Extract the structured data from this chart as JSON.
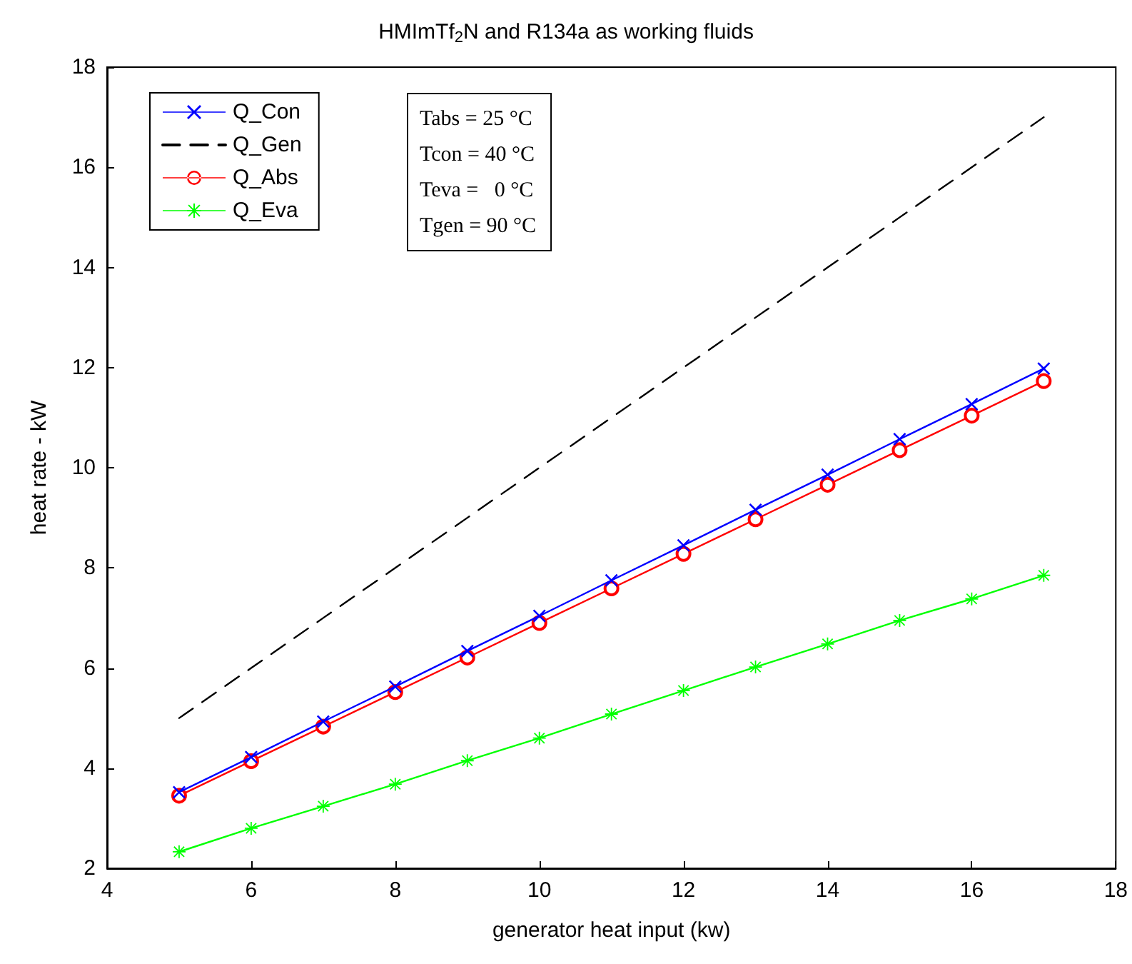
{
  "chart_data": {
    "type": "line",
    "title": "HMImTf$_{2}$N and R134a as working fluids",
    "xlabel": "generator heat input (kw)",
    "ylabel": "heat rate - kW",
    "x": [
      5,
      6,
      7,
      8,
      9,
      10,
      11,
      12,
      13,
      14,
      15,
      16,
      17
    ],
    "series": [
      {
        "name": "Q_Con",
        "color": "#0000ff",
        "marker": "cross",
        "line_style": "solid",
        "values": [
          3.52,
          4.22,
          4.93,
          5.63,
          6.34,
          7.04,
          7.75,
          8.45,
          9.16,
          9.86,
          10.57,
          11.27,
          11.98
        ]
      },
      {
        "name": "Q_Gen",
        "color": "#000000",
        "marker": "none",
        "line_style": "dashed",
        "values": [
          5,
          6,
          7,
          8,
          9,
          10,
          11,
          12,
          13,
          14,
          15,
          16,
          17
        ]
      },
      {
        "name": "Q_Abs",
        "color": "#ff0000",
        "marker": "circle",
        "line_style": "solid",
        "values": [
          3.45,
          4.14,
          4.83,
          5.52,
          6.21,
          6.9,
          7.59,
          8.28,
          8.97,
          9.66,
          10.35,
          11.04,
          11.73
        ]
      },
      {
        "name": "Q_Eva",
        "color": "#00ff00",
        "marker": "star",
        "line_style": "solid",
        "values": [
          2.33,
          2.8,
          3.24,
          3.68,
          4.15,
          4.6,
          5.08,
          5.55,
          6.02,
          6.48,
          6.95,
          7.38,
          7.85
        ]
      }
    ],
    "xlim": [
      4,
      18
    ],
    "xticks": [
      4,
      6,
      8,
      10,
      12,
      14,
      16,
      18
    ],
    "ylim": [
      2,
      18
    ],
    "yticks": [
      2,
      4,
      6,
      8,
      10,
      12,
      14,
      16,
      18
    ],
    "grid": false,
    "legend": "top left",
    "annotations": [
      "Tabs = 25 °C",
      "Tcon = 40 °C",
      "Teva =   0 °C",
      "Tgen = 90 °C"
    ]
  }
}
